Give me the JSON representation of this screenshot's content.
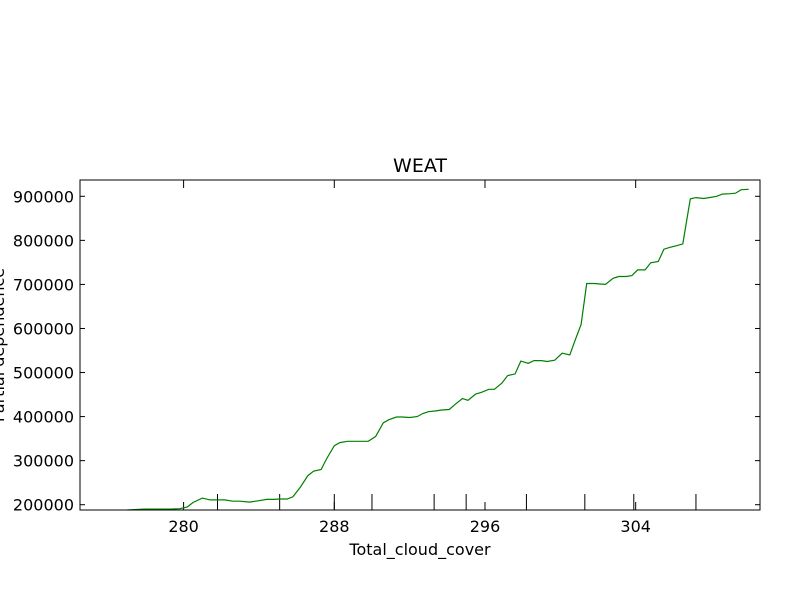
{
  "chart_data": {
    "type": "line",
    "title": "WEAT",
    "xlabel": "Total_cloud_cover",
    "ylabel": "Partial dependence",
    "xlim": [
      274.5,
      310.6
    ],
    "ylim": [
      188000,
      937000
    ],
    "x_ticks": [
      280,
      288,
      296,
      304
    ],
    "x_tick_labels": [
      "280",
      "288",
      "296",
      "304"
    ],
    "x_minor_ticks": [
      281.8,
      285.1,
      288.0,
      290.0,
      293.3,
      295.0,
      298.2,
      301.3,
      303.9,
      307.2
    ],
    "y_ticks": [
      200000,
      300000,
      400000,
      500000,
      600000,
      700000,
      800000,
      900000
    ],
    "y_tick_labels": [
      "200000",
      "300000",
      "400000",
      "500000",
      "600000",
      "700000",
      "800000",
      "900000"
    ],
    "grid": false,
    "series": [
      {
        "color": "#008000",
        "x": [
          277.0,
          277.9,
          278.7,
          279.3,
          279.8,
          280.2,
          280.5,
          281.0,
          281.4,
          281.8,
          282.2,
          282.6,
          283.0,
          283.5,
          284.0,
          284.4,
          284.8,
          285.1,
          285.5,
          285.8,
          286.2,
          286.6,
          286.9,
          287.3,
          287.6,
          288.0,
          288.3,
          288.7,
          289.1,
          289.4,
          289.8,
          290.2,
          290.6,
          290.9,
          291.3,
          291.6,
          292.0,
          292.4,
          292.7,
          293.0,
          293.4,
          293.7,
          294.1,
          294.4,
          294.8,
          295.1,
          295.5,
          295.8,
          296.2,
          296.5,
          296.9,
          297.2,
          297.6,
          297.9,
          298.3,
          298.6,
          299.0,
          299.3,
          299.7,
          300.1,
          300.5,
          300.8,
          301.1,
          301.4,
          301.8,
          302.1,
          302.4,
          302.8,
          303.1,
          303.5,
          303.8,
          304.1,
          304.5,
          304.8,
          305.2,
          305.5,
          305.8,
          306.2,
          306.5,
          306.9,
          307.2,
          307.6,
          307.9,
          308.3,
          308.6,
          309.0,
          309.3,
          309.6,
          310.0
        ],
        "y": [
          188000,
          190000,
          190000,
          190000,
          191000,
          195000,
          205000,
          215000,
          211000,
          211000,
          211000,
          208000,
          208000,
          206000,
          209000,
          212000,
          212000,
          213000,
          213000,
          218000,
          240000,
          266000,
          276000,
          280000,
          305000,
          334000,
          341000,
          344000,
          344000,
          344000,
          344000,
          355000,
          386000,
          393000,
          399000,
          399000,
          398000,
          400000,
          407000,
          411000,
          413000,
          415000,
          416000,
          427000,
          441000,
          437000,
          451000,
          455000,
          462000,
          462000,
          476000,
          493000,
          497000,
          526000,
          521000,
          527000,
          527000,
          525000,
          528000,
          544000,
          540000,
          575000,
          609000,
          702000,
          702000,
          701000,
          700000,
          714000,
          718000,
          718000,
          720000,
          733000,
          733000,
          749000,
          752000,
          780000,
          784000,
          788000,
          792000,
          894000,
          897000,
          895000,
          897000,
          900000,
          905000,
          906000,
          907000,
          915000,
          916000
        ]
      }
    ]
  }
}
